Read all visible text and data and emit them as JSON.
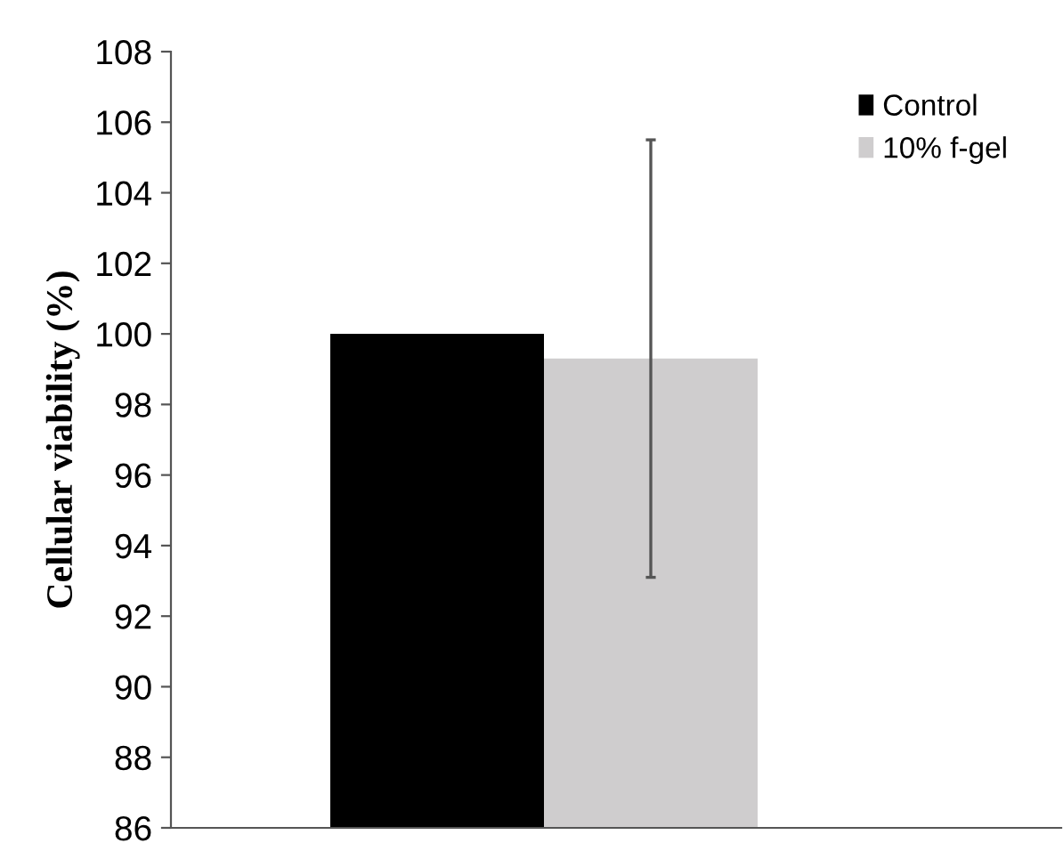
{
  "chart_data": {
    "type": "bar",
    "ylabel": "Cellular viability (%)",
    "categories": [
      null
    ],
    "series": [
      {
        "name": "Control",
        "color": "#000000",
        "values": [
          100
        ]
      },
      {
        "name": "10% f-gel",
        "color": "#cfcdce",
        "values": [
          99.3
        ],
        "errors": [
          [
            93.1,
            105.5
          ]
        ]
      }
    ],
    "ylim": [
      86,
      108
    ],
    "yticks": [
      86,
      88,
      90,
      92,
      94,
      96,
      98,
      100,
      102,
      104,
      106,
      108
    ],
    "grid": false,
    "legend": "top right"
  }
}
